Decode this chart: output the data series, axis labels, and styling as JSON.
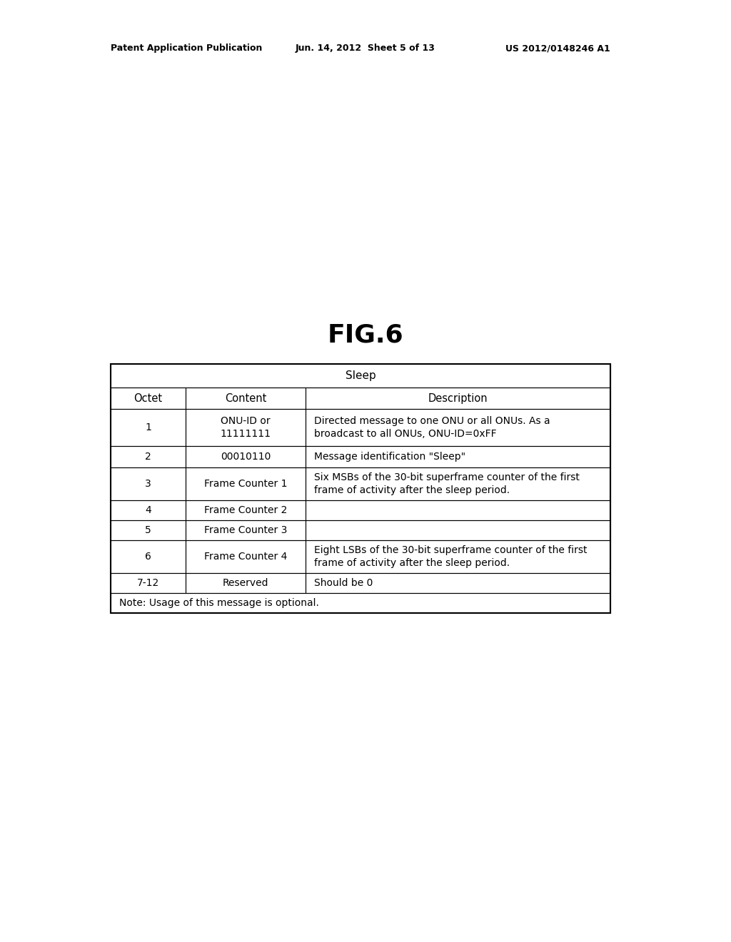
{
  "title": "FIG.6",
  "header_left": "Patent Application Publication",
  "header_mid": "Jun. 14, 2012  Sheet 5 of 13",
  "header_right": "US 2012/0148246 A1",
  "table_title": "Sleep",
  "col_headers": [
    "Octet",
    "Content",
    "Description"
  ],
  "rows": [
    {
      "octet": "1",
      "content": "ONU-ID or\n11111111",
      "description": "Directed message to one ONU or all ONUs. As a\nbroadcast to all ONUs, ONU-ID=0xFF"
    },
    {
      "octet": "2",
      "content": "00010110",
      "description": "Message identification \"Sleep\""
    },
    {
      "octet": "3",
      "content": "Frame Counter 1",
      "description": "Six MSBs of the 30-bit superframe counter of the first\nframe of activity after the sleep period."
    },
    {
      "octet": "4",
      "content": "Frame Counter 2",
      "description": ""
    },
    {
      "octet": "5",
      "content": "Frame Counter 3",
      "description": ""
    },
    {
      "octet": "6",
      "content": "Frame Counter 4",
      "description": "Eight LSBs of the 30-bit superframe counter of the first\nframe of activity after the sleep period."
    },
    {
      "octet": "7-12",
      "content": "Reserved",
      "description": "Should be 0"
    }
  ],
  "note": "Note: Usage of this message is optional.",
  "bg_color": "#ffffff",
  "border_color": "#000000",
  "text_color": "#000000",
  "fig_title_fontsize": 26,
  "header_fontsize": 9,
  "table_title_fontsize": 11,
  "col_header_fontsize": 10.5,
  "cell_fontsize": 10,
  "note_fontsize": 10
}
